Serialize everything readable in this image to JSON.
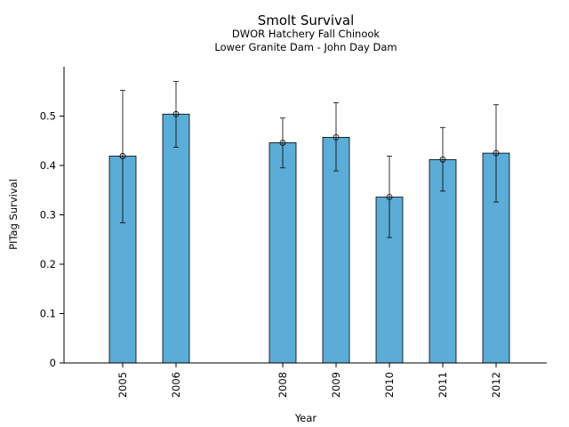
{
  "chart_data": {
    "type": "bar",
    "title": "Smolt Survival",
    "subtitle_lines": [
      "DWOR Hatchery Fall Chinook",
      "Lower Granite Dam - John Day Dam"
    ],
    "xlabel": "Year",
    "ylabel": "PITag Survival",
    "categories": [
      "2005",
      "2006",
      "2008",
      "2009",
      "2010",
      "2011",
      "2012"
    ],
    "x_positions": [
      2005,
      2006,
      2008,
      2009,
      2010,
      2011,
      2012
    ],
    "xlim": [
      2003.9,
      2012.95
    ],
    "values": [
      0.419,
      0.504,
      0.446,
      0.457,
      0.336,
      0.412,
      0.425
    ],
    "error_low": [
      0.284,
      0.437,
      0.395,
      0.389,
      0.254,
      0.348,
      0.326
    ],
    "error_high": [
      0.552,
      0.57,
      0.496,
      0.527,
      0.419,
      0.477,
      0.523
    ],
    "ylim": [
      0,
      0.6
    ],
    "yticks": [
      0,
      0.1,
      0.2,
      0.3,
      0.4,
      0.5
    ],
    "ytick_labels": [
      "0",
      "0.1",
      "0.2",
      "0.3",
      "0.4",
      "0.5"
    ],
    "bar_color": "#5bacd6",
    "bar_edge_color": "#000000",
    "grid": false,
    "legend": "none"
  }
}
